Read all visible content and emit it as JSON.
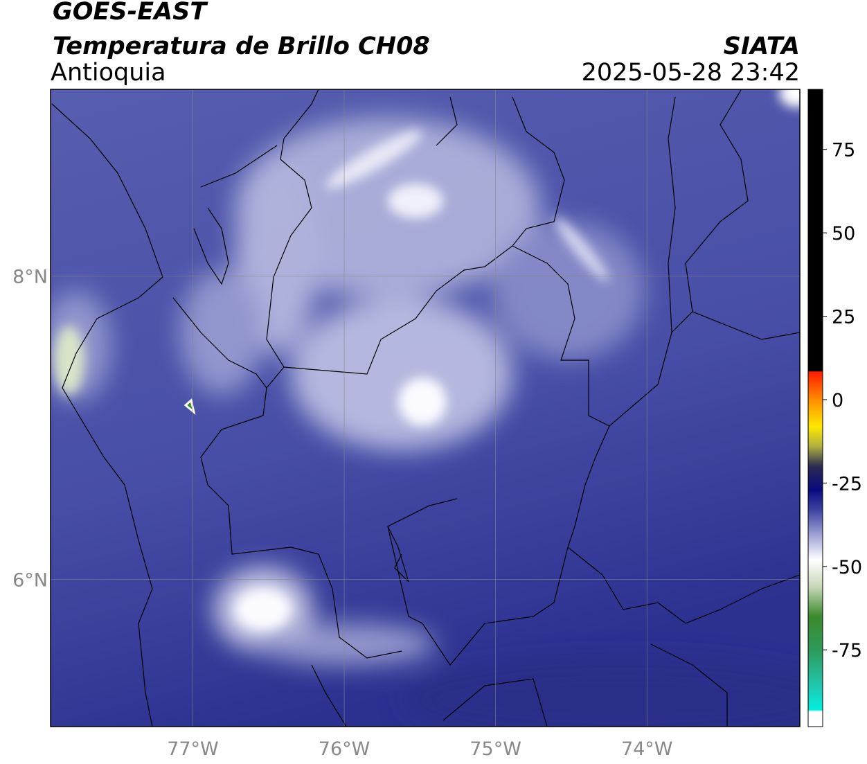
{
  "header": {
    "title": "GOES-EAST",
    "subtitle": "Temperatura de Brillo CH08",
    "region": "Antioquia",
    "source": "SIATA",
    "timestamp": "2025-05-28 23:42"
  },
  "map": {
    "lon_range": [
      -77.94,
      -72.99
    ],
    "lat_range": [
      5.03,
      9.23
    ],
    "lon_ticks": [
      {
        "value": -77,
        "label": "77°W"
      },
      {
        "value": -76,
        "label": "76°W"
      },
      {
        "value": -75,
        "label": "75°W"
      },
      {
        "value": -74,
        "label": "74°W"
      }
    ],
    "lat_ticks": [
      {
        "value": 8,
        "label": "8°N"
      },
      {
        "value": 6,
        "label": "6°N"
      }
    ],
    "grid": true
  },
  "colorbar": {
    "range": [
      -98,
      93
    ],
    "ticks": [
      75,
      50,
      25,
      0,
      -25,
      -50,
      -75
    ],
    "stops": [
      {
        "value": 93,
        "color": "#000000"
      },
      {
        "value": 8.5,
        "color": "#000000"
      },
      {
        "value": 8.4,
        "color": "#ff1a00"
      },
      {
        "value": 0,
        "color": "#ff8c00"
      },
      {
        "value": -8,
        "color": "#ffe800"
      },
      {
        "value": -14,
        "color": "#b0b040"
      },
      {
        "value": -20,
        "color": "#2a2a50"
      },
      {
        "value": -27,
        "color": "#0a0a80"
      },
      {
        "value": -33,
        "color": "#3d42a0"
      },
      {
        "value": -41,
        "color": "#a4a8d8"
      },
      {
        "value": -48,
        "color": "#ffffff"
      },
      {
        "value": -56,
        "color": "#c8d8b8"
      },
      {
        "value": -65,
        "color": "#3b8a2c"
      },
      {
        "value": -75,
        "color": "#2e9a5a"
      },
      {
        "value": -86,
        "color": "#20c8b0"
      },
      {
        "value": -93,
        "color": "#00f0e0"
      },
      {
        "value": -93.5,
        "color": "#ffffff"
      },
      {
        "value": -98,
        "color": "#ffffff"
      }
    ]
  }
}
